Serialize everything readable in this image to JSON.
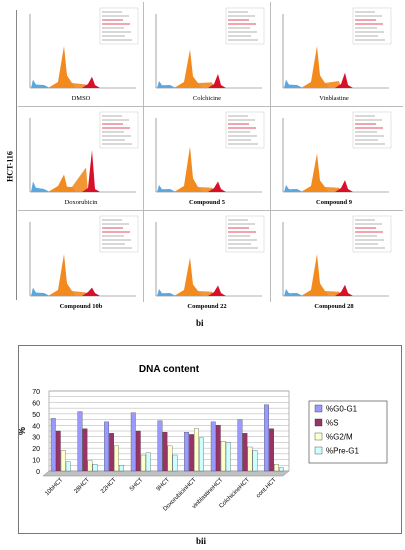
{
  "panel_bi": {
    "side_label": "HCT-116",
    "label": "bi",
    "cells": [
      {
        "name": "DMSO",
        "bold": false,
        "g0": 0.6,
        "g2": 0.16,
        "sub": 0.05,
        "pre": 0.12
      },
      {
        "name": "Colchicine",
        "bold": false,
        "g0": 0.55,
        "g2": 0.2,
        "sub": 0.08,
        "pre": 0.1
      },
      {
        "name": "Vinblastine",
        "bold": false,
        "g0": 0.6,
        "g2": 0.22,
        "sub": 0.1,
        "pre": 0.12
      },
      {
        "name": "Doxorubicin",
        "bold": false,
        "g0": 0.25,
        "g2": 0.6,
        "sub": 0.35,
        "pre": 0.15
      },
      {
        "name": "Compound 5",
        "bold": true,
        "g0": 0.65,
        "g2": 0.15,
        "sub": 0.06,
        "pre": 0.1
      },
      {
        "name": "Compound 9",
        "bold": true,
        "g0": 0.55,
        "g2": 0.17,
        "sub": 0.06,
        "pre": 0.1
      },
      {
        "name": "Compound 10b",
        "bold": true,
        "g0": 0.6,
        "g2": 0.12,
        "sub": 0.05,
        "pre": 0.12
      },
      {
        "name": "Compound 22",
        "bold": true,
        "g0": 0.55,
        "g2": 0.15,
        "sub": 0.06,
        "pre": 0.1
      },
      {
        "name": "Compound 28",
        "bold": true,
        "g0": 0.6,
        "g2": 0.16,
        "sub": 0.06,
        "pre": 0.1
      }
    ]
  },
  "panel_bii": {
    "label": "bii"
  },
  "colors": {
    "g0g1": "#9999ff",
    "s": "#993366",
    "g2m": "#ffffcc",
    "preg1": "#ccffff",
    "orange": "#f28a1e",
    "red": "#d8102a",
    "blue": "#5aa8e0"
  },
  "chart_data": {
    "type": "bar",
    "title": "DNA content",
    "ylabel": "%",
    "ylim": [
      0,
      70
    ],
    "yticks": [
      0,
      5,
      10,
      15,
      20,
      25,
      30,
      35,
      40,
      45,
      50,
      55,
      60,
      65,
      70
    ],
    "categories": [
      "10bHCT",
      "28HCT",
      "22HCT",
      "5HCT",
      "9HCT",
      "DoxorubicinHCT",
      "vinblastineHCT",
      "ColchicineHCT",
      "cont.HCT"
    ],
    "series": [
      {
        "name": "%G0-G1",
        "values": [
          46,
          52,
          43,
          51,
          44,
          34,
          43,
          45,
          58
        ]
      },
      {
        "name": "%S",
        "values": [
          35,
          37,
          33,
          35,
          34,
          32,
          40,
          33,
          37
        ]
      },
      {
        "name": "%G2/M",
        "values": [
          18,
          9,
          22,
          14,
          22,
          37,
          26,
          21,
          6
        ]
      },
      {
        "name": "%Pre-G1",
        "values": [
          8,
          6,
          5,
          16,
          14,
          29,
          25,
          18,
          3
        ]
      }
    ],
    "legend": "right",
    "grid": true
  }
}
